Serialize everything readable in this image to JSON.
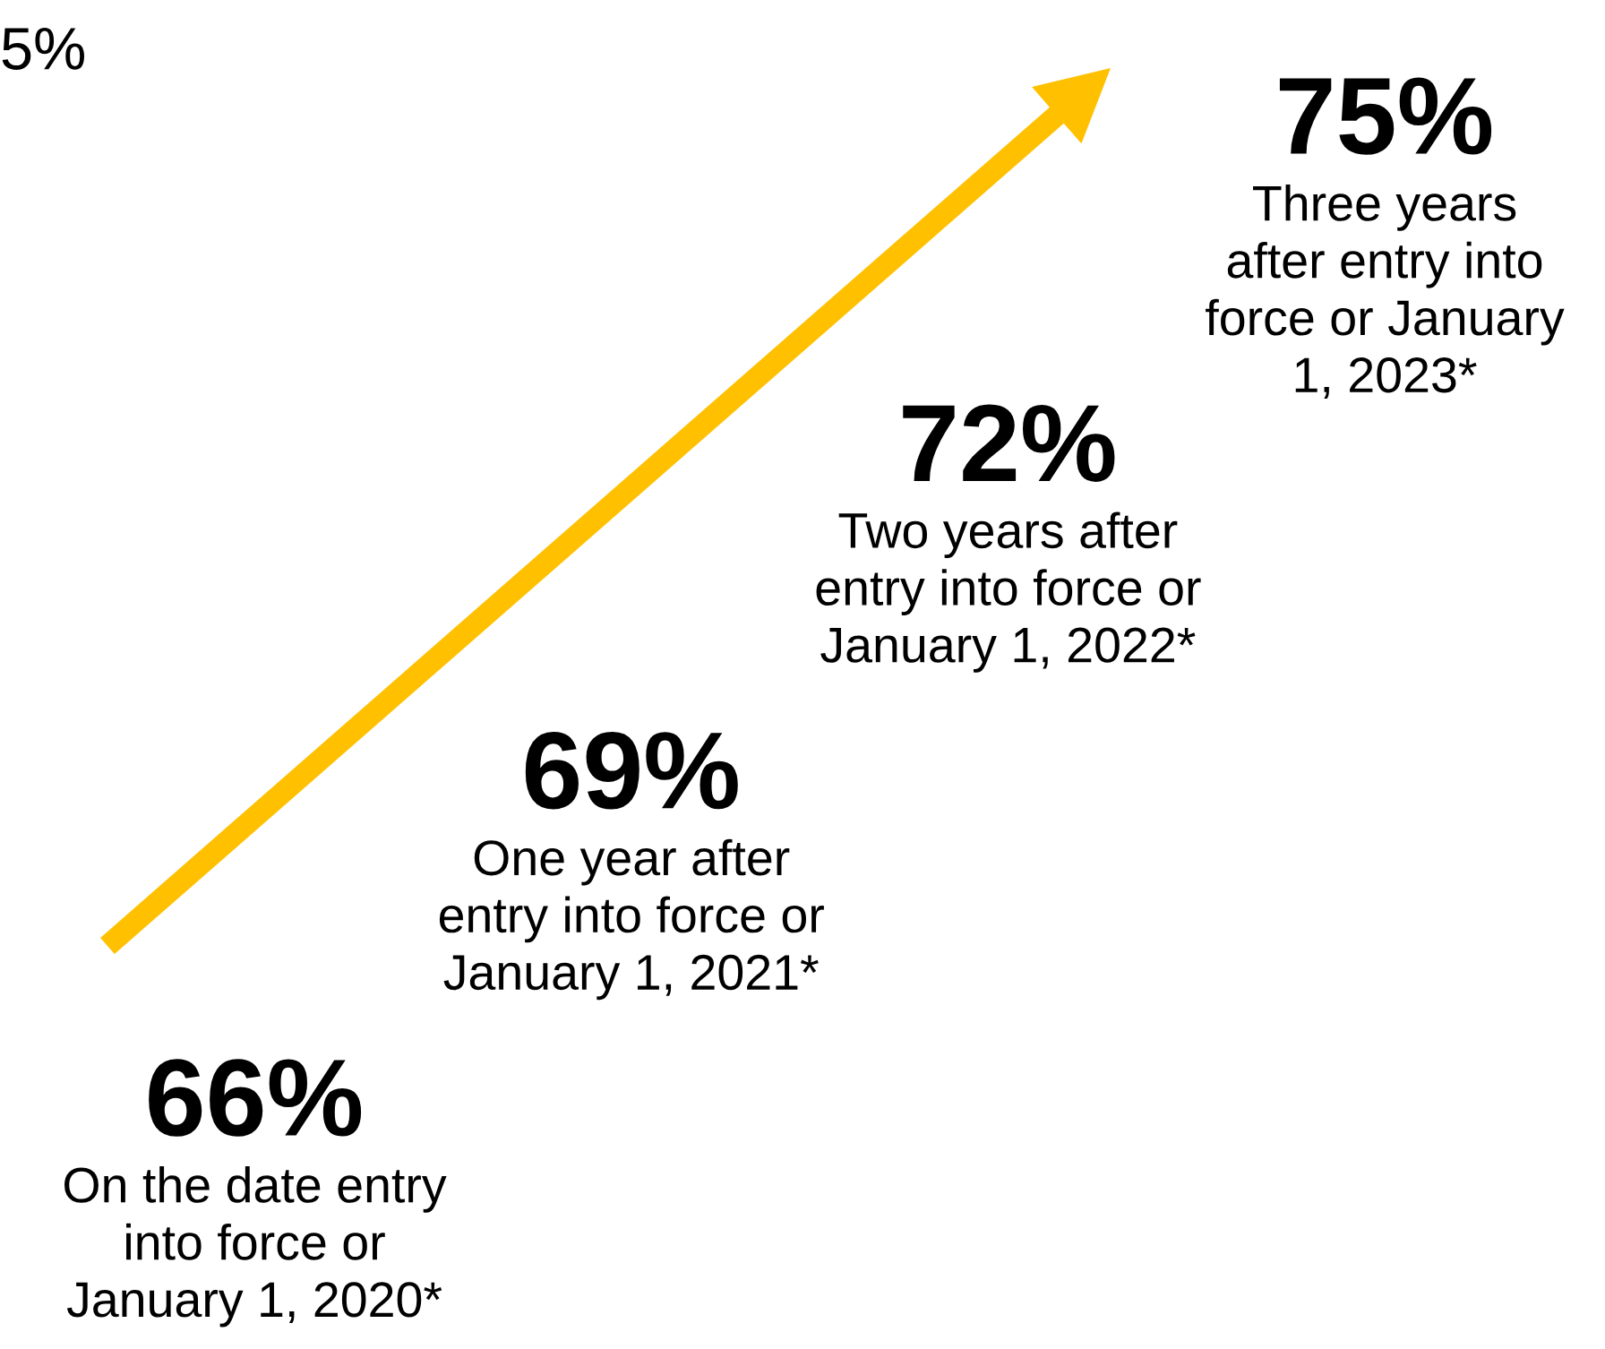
{
  "chart_data": {
    "type": "other",
    "categories": [
      "On the date entry\ninto force or\nJanuary 1, 2020*",
      "One year after\nentry into force or\nJanuary 1, 2021*",
      "Two years after\nentry into force or\nJanuary 1, 2022*",
      "Three years\nafter entry into\nforce or January\n1, 2023*"
    ],
    "values": [
      66,
      69,
      72,
      75
    ],
    "value_labels": [
      "66%",
      "69%",
      "72%",
      "75%"
    ],
    "color": "#ffc000",
    "annotations": [
      "5%"
    ]
  }
}
